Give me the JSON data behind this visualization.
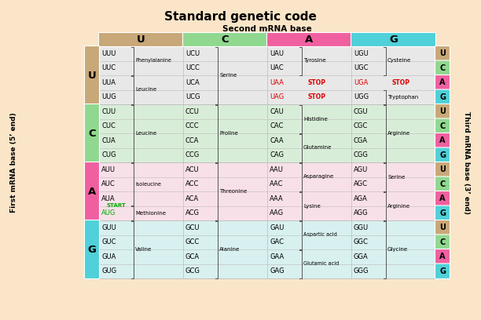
{
  "title": "Standard genetic code",
  "second_base_label": "Second mRNA base",
  "first_base_label": "First mRNA base (5’ end)",
  "third_base_label": "Third mRNA base (3’ end)",
  "bg_color": "#FAE5C8",
  "col_headers": [
    "U",
    "C",
    "A",
    "G"
  ],
  "col_colors": [
    "#C8A878",
    "#90D890",
    "#F060A0",
    "#50D0D8"
  ],
  "row_colors": [
    "#C8A878",
    "#90D890",
    "#F060A0",
    "#50D0D8"
  ],
  "third_colors": [
    "#C8A878",
    "#90D890",
    "#F060A0",
    "#50D0D8"
  ],
  "row_bg": [
    "#E8E8E8",
    "#D8EDD8",
    "#F8E0E8",
    "#D8F0F0"
  ],
  "codons": [
    [
      "UUU",
      "UUC",
      "UUA",
      "UUG",
      "UCU",
      "UCC",
      "UCA",
      "UCG",
      "UAU",
      "UAC",
      "UAA",
      "UAG",
      "UGU",
      "UGC",
      "UGA",
      "UGG"
    ],
    [
      "CUU",
      "CUC",
      "CUA",
      "CUG",
      "CCU",
      "CCC",
      "CCA",
      "CCG",
      "CAU",
      "CAC",
      "CAA",
      "CAG",
      "CGU",
      "CGC",
      "CGA",
      "CGG"
    ],
    [
      "AUU",
      "AUC",
      "AUA",
      "AUG",
      "ACU",
      "ACC",
      "ACA",
      "ACG",
      "AAU",
      "AAC",
      "AAA",
      "AAG",
      "AGU",
      "AGC",
      "AGA",
      "AGG"
    ],
    [
      "GUU",
      "GUC",
      "GUA",
      "GUG",
      "GCU",
      "GCC",
      "GCA",
      "GCG",
      "GAU",
      "GAC",
      "GAA",
      "GAG",
      "GGU",
      "GGC",
      "GGA",
      "GGG"
    ]
  ],
  "stop_codons": [
    "UAA",
    "UAG",
    "UGA"
  ],
  "start_codon": "AUG",
  "aa_groups": [
    {
      "rg": 0,
      "cg": 0,
      "sr": 0,
      "span": 2,
      "label": "Phenylalanine"
    },
    {
      "rg": 0,
      "cg": 0,
      "sr": 2,
      "span": 2,
      "label": "Leucine"
    },
    {
      "rg": 0,
      "cg": 1,
      "sr": 0,
      "span": 4,
      "label": "Serine"
    },
    {
      "rg": 0,
      "cg": 2,
      "sr": 0,
      "span": 2,
      "label": "Tyrosine"
    },
    {
      "rg": 0,
      "cg": 3,
      "sr": 0,
      "span": 2,
      "label": "Cysteine"
    },
    {
      "rg": 0,
      "cg": 3,
      "sr": 3,
      "span": 1,
      "label": "Tryptophan"
    },
    {
      "rg": 1,
      "cg": 0,
      "sr": 0,
      "span": 4,
      "label": "Leucine"
    },
    {
      "rg": 1,
      "cg": 1,
      "sr": 0,
      "span": 4,
      "label": "Proline"
    },
    {
      "rg": 1,
      "cg": 2,
      "sr": 0,
      "span": 2,
      "label": "Histidine"
    },
    {
      "rg": 1,
      "cg": 2,
      "sr": 2,
      "span": 2,
      "label": "Glutamine"
    },
    {
      "rg": 1,
      "cg": 3,
      "sr": 0,
      "span": 4,
      "label": "Arginine"
    },
    {
      "rg": 2,
      "cg": 0,
      "sr": 0,
      "span": 3,
      "label": "Isoleucine"
    },
    {
      "rg": 2,
      "cg": 0,
      "sr": 3,
      "span": 1,
      "label": "Methionine"
    },
    {
      "rg": 2,
      "cg": 1,
      "sr": 0,
      "span": 4,
      "label": "Threonine"
    },
    {
      "rg": 2,
      "cg": 2,
      "sr": 0,
      "span": 2,
      "label": "Asparagine"
    },
    {
      "rg": 2,
      "cg": 2,
      "sr": 2,
      "span": 2,
      "label": "Lysine"
    },
    {
      "rg": 2,
      "cg": 3,
      "sr": 0,
      "span": 2,
      "label": "Serine"
    },
    {
      "rg": 2,
      "cg": 3,
      "sr": 2,
      "span": 2,
      "label": "Arginine"
    },
    {
      "rg": 3,
      "cg": 0,
      "sr": 0,
      "span": 4,
      "label": "Valine"
    },
    {
      "rg": 3,
      "cg": 1,
      "sr": 0,
      "span": 4,
      "label": "Alanine"
    },
    {
      "rg": 3,
      "cg": 2,
      "sr": 0,
      "span": 2,
      "label": "Aspartic acid"
    },
    {
      "rg": 3,
      "cg": 2,
      "sr": 2,
      "span": 2,
      "label": "Glutamic acid"
    },
    {
      "rg": 3,
      "cg": 3,
      "sr": 0,
      "span": 4,
      "label": "Glycine"
    }
  ],
  "stop_label_positions": [
    {
      "codon": "UAA",
      "rg": 0,
      "sr": 2,
      "cg": 2
    },
    {
      "codon": "UAG",
      "rg": 0,
      "sr": 3,
      "cg": 2
    },
    {
      "codon": "UGA",
      "rg": 0,
      "sr": 2,
      "cg": 3
    }
  ]
}
